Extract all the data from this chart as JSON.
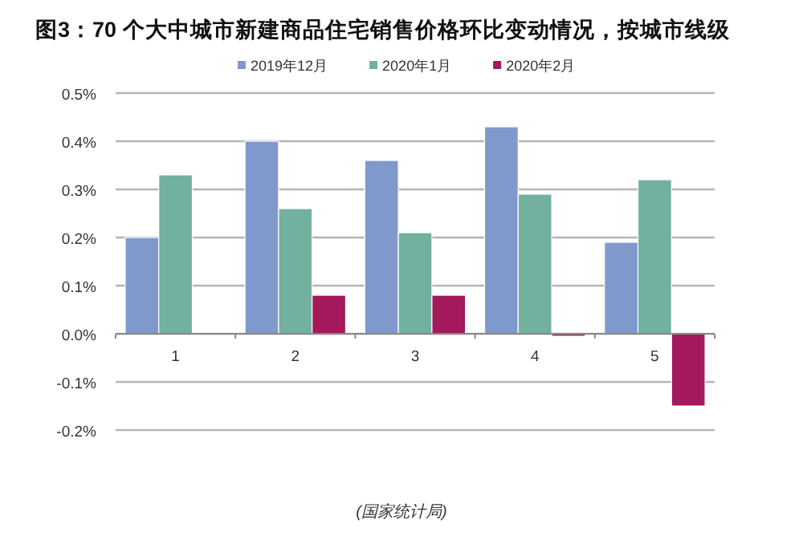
{
  "chart_data": {
    "type": "bar",
    "title": "图3：70 个大中城市新建商品住宅销售价格环比变动情况，按城市线级",
    "categories": [
      "1",
      "2",
      "3",
      "4",
      "5"
    ],
    "series": [
      {
        "name": "2019年12月",
        "color": "#7f99cc",
        "values": [
          0.2,
          0.4,
          0.36,
          0.43,
          0.19
        ]
      },
      {
        "name": "2020年1月",
        "color": "#72b0a0",
        "values": [
          0.33,
          0.26,
          0.21,
          0.29,
          0.32
        ]
      },
      {
        "name": "2020年2月",
        "color": "#a3195b",
        "values": [
          null,
          0.08,
          0.08,
          -0.005,
          -0.15
        ]
      }
    ],
    "ylim": [
      -0.2,
      0.5
    ],
    "yticks": [
      {
        "value": -0.2,
        "label": "-0.2%"
      },
      {
        "value": -0.1,
        "label": "-0.1%"
      },
      {
        "value": 0,
        "label": "0.0%"
      },
      {
        "value": 0.1,
        "label": "0.1%"
      },
      {
        "value": 0.2,
        "label": "0.2%"
      },
      {
        "value": 0.3,
        "label": "0.3%"
      },
      {
        "value": 0.4,
        "label": "0.4%"
      },
      {
        "value": 0.5,
        "label": "0.5%"
      }
    ],
    "grid": "y",
    "legend": "top",
    "annotations": [
      "(国家统计局)"
    ]
  }
}
